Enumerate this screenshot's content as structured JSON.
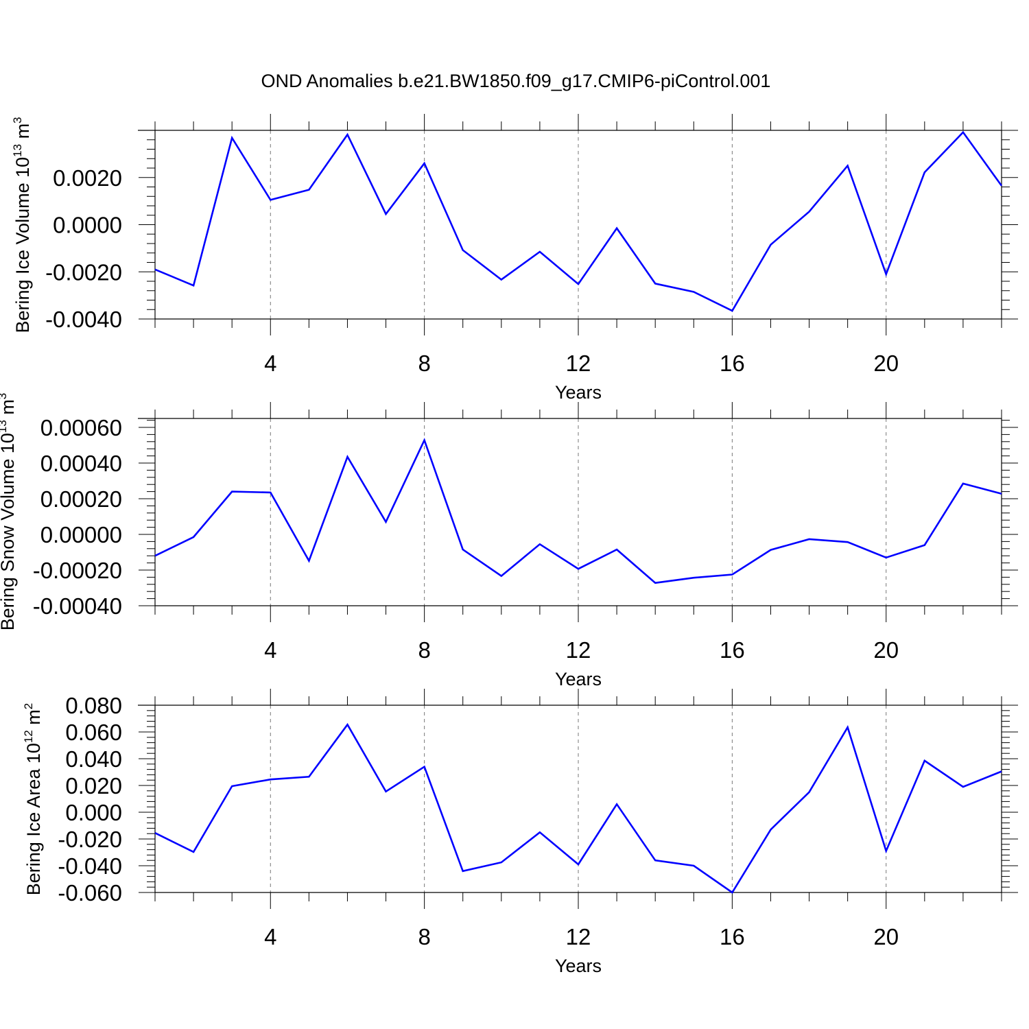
{
  "title": "OND Anomalies b.e21.BW1850.f09_g17.CMIP6-piControl.001",
  "colors": {
    "line": "#0000ff",
    "axes": "#000000",
    "grid": "#777777"
  },
  "chart_data": [
    {
      "type": "line",
      "xlabel": "Years",
      "ylabel": {
        "main": "Bering Ice Volume 10",
        "exp": "13",
        "unit": " m",
        "unit_exp": "3"
      },
      "xlim": [
        1,
        23
      ],
      "ylim": [
        -0.004,
        0.004
      ],
      "x_ticks": [
        4,
        8,
        12,
        16,
        20
      ],
      "x_tick_labels": [
        "4",
        "8",
        "12",
        "16",
        "20"
      ],
      "y_ticks": [
        -0.004,
        -0.002,
        0.0,
        0.002
      ],
      "y_tick_labels": [
        "-0.0040",
        "-0.0020",
        "0.0000",
        "0.0020"
      ],
      "grid": "vertical dashed at major x ticks",
      "series": [
        {
          "x": [
            1,
            2,
            3,
            4,
            5,
            6,
            7,
            8,
            9,
            10,
            11,
            12,
            13,
            14,
            15,
            16,
            17,
            18,
            19,
            20,
            21,
            22,
            23
          ],
          "values": [
            -0.0019,
            -0.00258,
            0.00368,
            0.00105,
            0.00148,
            0.00382,
            0.00045,
            0.0026,
            -0.00108,
            -0.00233,
            -0.00115,
            -0.00252,
            -0.00015,
            -0.0025,
            -0.00285,
            -0.00365,
            -0.00085,
            0.00055,
            0.0025,
            -0.0021,
            0.00222,
            0.00392,
            0.00165
          ]
        }
      ]
    },
    {
      "type": "line",
      "xlabel": "Years",
      "ylabel": {
        "main": "Bering Snow Volume 10",
        "exp": "13",
        "unit": " m",
        "unit_exp": "3"
      },
      "xlim": [
        1,
        23
      ],
      "ylim": [
        -0.0004,
        0.00065
      ],
      "x_ticks": [
        4,
        8,
        12,
        16,
        20
      ],
      "x_tick_labels": [
        "4",
        "8",
        "12",
        "16",
        "20"
      ],
      "y_ticks": [
        -0.0004,
        -0.0002,
        0.0,
        0.0002,
        0.0004,
        0.0006
      ],
      "y_tick_labels": [
        "-0.00040",
        "-0.00020",
        "0.00000",
        "0.00020",
        "0.00040",
        "0.00060"
      ],
      "grid": "vertical dashed at major x ticks",
      "series": [
        {
          "x": [
            1,
            2,
            3,
            4,
            5,
            6,
            7,
            8,
            9,
            10,
            11,
            12,
            13,
            14,
            15,
            16,
            17,
            18,
            19,
            20,
            21,
            22,
            23
          ],
          "values": [
            -0.00012,
            -1.5e-05,
            0.00024,
            0.000235,
            -0.000148,
            0.000435,
            7e-05,
            0.000528,
            -8.5e-05,
            -0.000233,
            -5.5e-05,
            -0.000193,
            -8.5e-05,
            -0.000272,
            -0.000243,
            -0.000225,
            -8.7e-05,
            -2.7e-05,
            -4.3e-05,
            -0.00013,
            -6e-05,
            0.000285,
            0.000228
          ]
        }
      ]
    },
    {
      "type": "line",
      "xlabel": "Years",
      "ylabel": {
        "main": "Bering Ice Area 10",
        "exp": "12",
        "unit": " m",
        "unit_exp": "2"
      },
      "xlim": [
        1,
        23
      ],
      "ylim": [
        -0.06,
        0.08
      ],
      "x_ticks": [
        4,
        8,
        12,
        16,
        20
      ],
      "x_tick_labels": [
        "4",
        "8",
        "12",
        "16",
        "20"
      ],
      "y_ticks": [
        -0.06,
        -0.04,
        -0.02,
        0.0,
        0.02,
        0.04,
        0.06,
        0.08
      ],
      "y_tick_labels": [
        "-0.060",
        "-0.040",
        "-0.020",
        "0.000",
        "0.020",
        "0.040",
        "0.060",
        "0.080"
      ],
      "grid": "vertical dashed at major x ticks",
      "series": [
        {
          "x": [
            1,
            2,
            3,
            4,
            5,
            6,
            7,
            8,
            9,
            10,
            11,
            12,
            13,
            14,
            15,
            16,
            17,
            18,
            19,
            20,
            21,
            22,
            23
          ],
          "values": [
            -0.0155,
            -0.0297,
            0.0195,
            0.0245,
            0.0265,
            0.0655,
            0.0155,
            0.034,
            -0.044,
            -0.0375,
            -0.015,
            -0.039,
            0.006,
            -0.036,
            -0.04,
            -0.06,
            -0.013,
            0.015,
            0.0635,
            -0.029,
            0.0385,
            0.019,
            0.0305
          ]
        }
      ]
    }
  ]
}
